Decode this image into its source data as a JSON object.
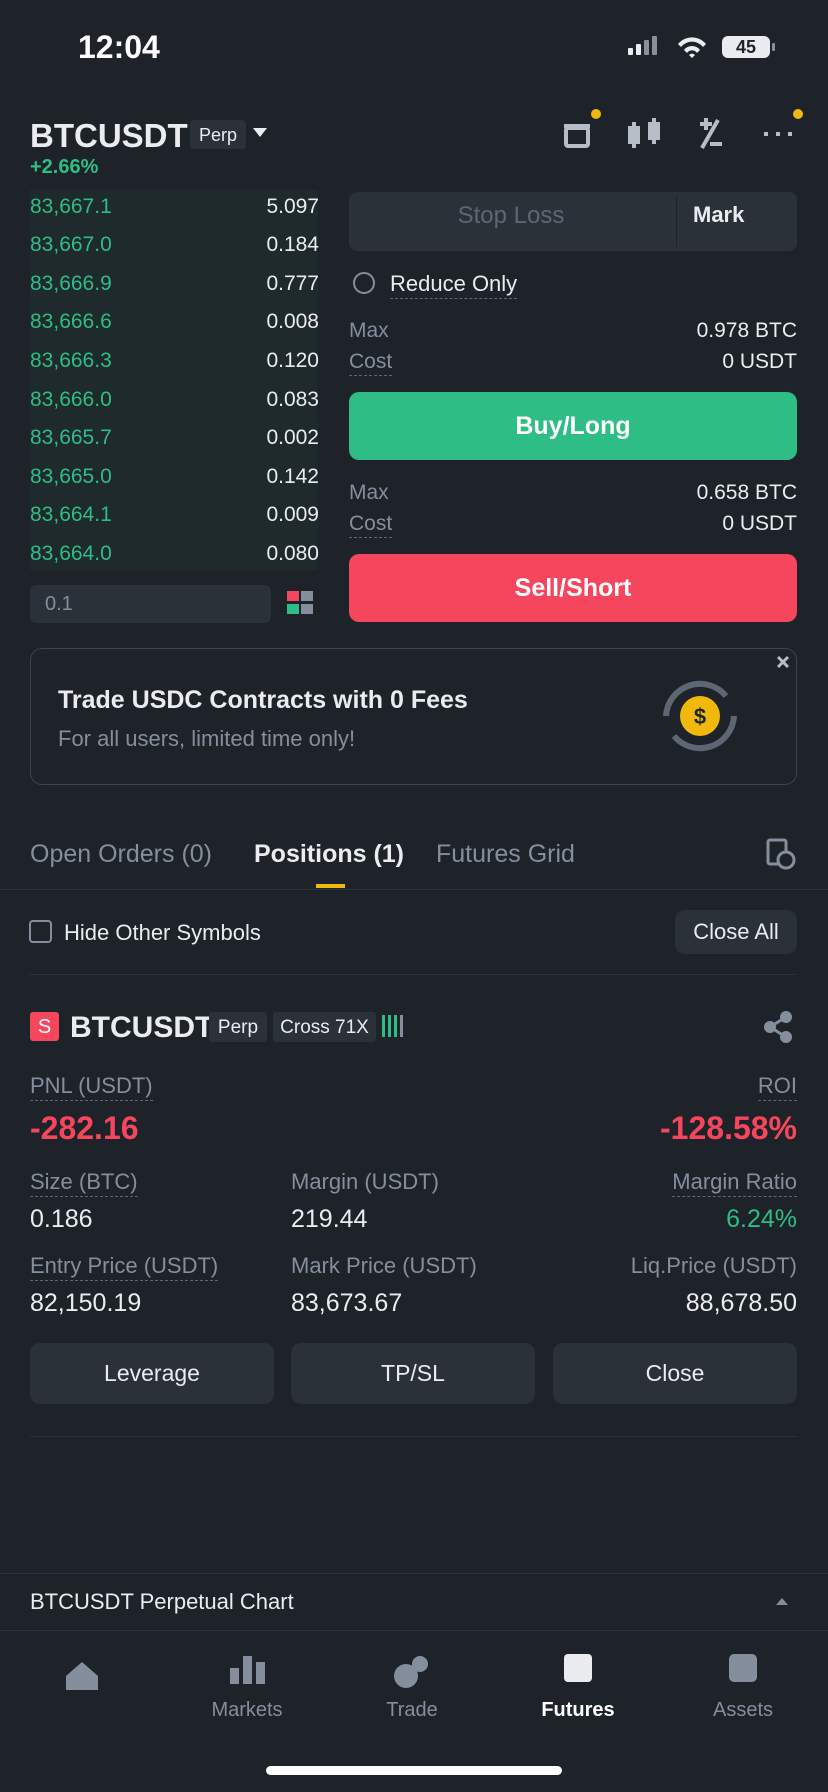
{
  "status_bar": {
    "time": "12:04",
    "battery": "45"
  },
  "header": {
    "symbol": "BTCUSDT",
    "badge": "Perp",
    "change": "+2.66%"
  },
  "order_book": {
    "rows": [
      [
        "83,667.1",
        "5.097"
      ],
      [
        "83,667.0",
        "0.184"
      ],
      [
        "83,666.9",
        "0.777"
      ],
      [
        "83,666.6",
        "0.008"
      ],
      [
        "83,666.3",
        "0.120"
      ],
      [
        "83,666.0",
        "0.083"
      ],
      [
        "83,665.7",
        "0.002"
      ],
      [
        "83,665.0",
        "0.142"
      ],
      [
        "83,664.1",
        "0.009"
      ],
      [
        "83,664.0",
        "0.080"
      ]
    ],
    "precision": "0.1"
  },
  "order_form": {
    "stop_loss": "Stop Loss",
    "price_type": "Mark",
    "reduce_only": "Reduce Only",
    "buy": {
      "max_label": "Max",
      "max_value": "0.978 BTC",
      "cost_label": "Cost",
      "cost_value": "0 USDT",
      "button": "Buy/Long"
    },
    "sell": {
      "max_label": "Max",
      "max_value": "0.658 BTC",
      "cost_label": "Cost",
      "cost_value": "0 USDT",
      "button": "Sell/Short"
    }
  },
  "banner": {
    "title": "Trade USDC Contracts with 0 Fees",
    "subtitle": "For all users, limited time only!"
  },
  "tabs": [
    "Open Orders (0)",
    "Positions (1)",
    "Futures Grid"
  ],
  "filter": {
    "hide_other": "Hide Other Symbols",
    "close_all": "Close All"
  },
  "position": {
    "icon": "S",
    "symbol": "BTCUSDT",
    "badge": "Perp",
    "margin_mode": "Cross 71X",
    "pnl_label": "PNL (USDT)",
    "pnl": "-282.16",
    "roi_label": "ROI",
    "roi": "-128.58%",
    "fields": [
      {
        "label": "Size (BTC)",
        "value": "0.186"
      },
      {
        "label": "Margin (USDT)",
        "value": "219.44"
      },
      {
        "label": "Margin Ratio",
        "value": "6.24%"
      },
      {
        "label": "Entry Price (USDT)",
        "value": "82,150.19"
      },
      {
        "label": "Mark Price (USDT)",
        "value": "83,673.67"
      },
      {
        "label": "Liq.Price (USDT)",
        "value": "88,678.50"
      }
    ],
    "buttons": [
      "Leverage",
      "TP/SL",
      "Close"
    ]
  },
  "chart_bar": {
    "title": "BTCUSDT Perpetual  Chart"
  },
  "nav": {
    "items": [
      "Markets",
      "Trade",
      "Futures",
      "Assets"
    ]
  }
}
